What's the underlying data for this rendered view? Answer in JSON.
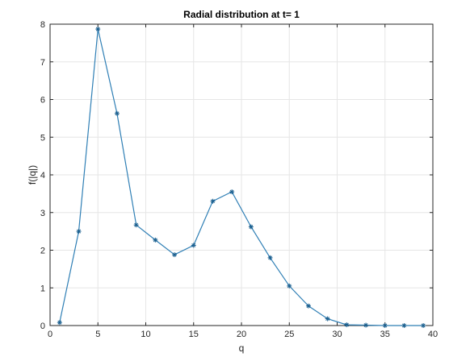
{
  "chart_data": {
    "type": "line",
    "title": "Radial distribution at t= 1",
    "xlabel": "q",
    "ylabel": "f(|q|)",
    "xlim": [
      0,
      40
    ],
    "ylim": [
      0,
      8
    ],
    "xticks": [
      0,
      5,
      10,
      15,
      20,
      25,
      30,
      35,
      40
    ],
    "yticks": [
      0,
      1,
      2,
      3,
      4,
      5,
      6,
      7,
      8
    ],
    "grid": true,
    "marker": "asterisk",
    "series": [
      {
        "x": [
          1,
          3,
          5,
          7,
          9,
          11,
          13,
          15,
          17,
          19,
          21,
          23,
          25,
          27,
          29,
          31,
          33,
          35,
          37,
          39
        ],
        "y": [
          0.08,
          2.5,
          7.87,
          5.63,
          2.67,
          2.27,
          1.88,
          2.13,
          3.3,
          3.55,
          2.62,
          1.8,
          1.05,
          0.52,
          0.18,
          0.02,
          0.01,
          0.0,
          0.0,
          0.0
        ]
      }
    ],
    "colors": {
      "line": "#2f7fb5",
      "marker": "#1a5f8f",
      "grid": "#e6e6e6",
      "axis": "#262626"
    }
  }
}
